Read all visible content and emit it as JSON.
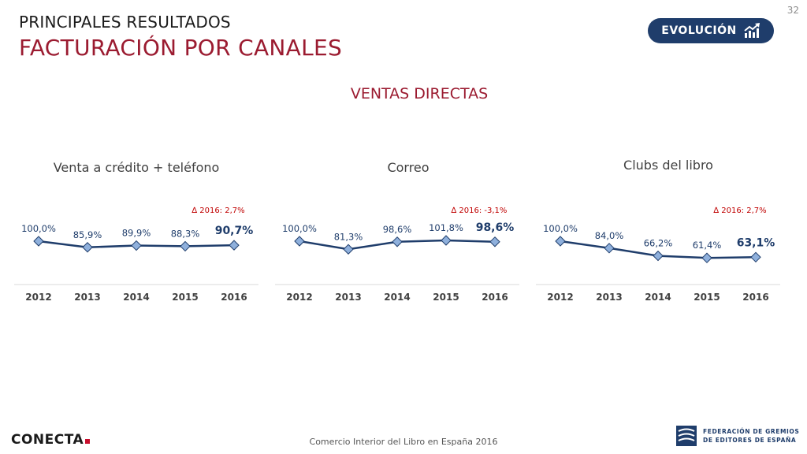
{
  "header": {
    "subtitle": "PRINCIPALES RESULTADOS",
    "title": "FACTURACIÓN POR CANALES",
    "page_number": "32",
    "badge_label": "EVOLUCIÓN",
    "badge_icon": "trend-chart-icon"
  },
  "section_title": "VENTAS DIRECTAS",
  "colors": {
    "title": "#9b1b30",
    "badge": "#1f3d6b",
    "line": "#1f3d6b",
    "marker": "#8fb0dc",
    "delta": "#c00000"
  },
  "chart_data": [
    {
      "type": "line",
      "title": "Venta a crédito + teléfono",
      "categories": [
        "2012",
        "2013",
        "2014",
        "2015",
        "2016"
      ],
      "values": [
        100.0,
        85.9,
        89.9,
        88.3,
        90.7
      ],
      "value_labels": [
        "100,0%",
        "85,9%",
        "89,9%",
        "88,3%",
        "90,7%"
      ],
      "annotation": "∆ 2016:  2,7%",
      "ylim": [
        0,
        100
      ]
    },
    {
      "type": "line",
      "title": "Correo",
      "categories": [
        "2012",
        "2013",
        "2014",
        "2015",
        "2016"
      ],
      "values": [
        100.0,
        81.3,
        98.6,
        101.8,
        98.6
      ],
      "value_labels": [
        "100,0%",
        "81,3%",
        "98,6%",
        "101,8%",
        "98,6%"
      ],
      "annotation": "∆ 2016:  -3,1%",
      "ylim": [
        0,
        100
      ]
    },
    {
      "type": "line",
      "title": "Clubs del libro",
      "categories": [
        "2012",
        "2013",
        "2014",
        "2015",
        "2016"
      ],
      "values": [
        100.0,
        84.0,
        66.2,
        61.4,
        63.1
      ],
      "value_labels": [
        "100,0%",
        "84,0%",
        "66,2%",
        "61,4%",
        "63,1%"
      ],
      "annotation": "∆ 2016:  2,7%",
      "ylim": [
        0,
        100
      ]
    }
  ],
  "footer": {
    "text": "Comercio Interior del Libro en España 2016",
    "logo_left": "CONECTA",
    "logo_right_line1": "FEDERACIÓN DE GREMIOS",
    "logo_right_line2": "DE EDITORES DE ESPAÑA"
  }
}
